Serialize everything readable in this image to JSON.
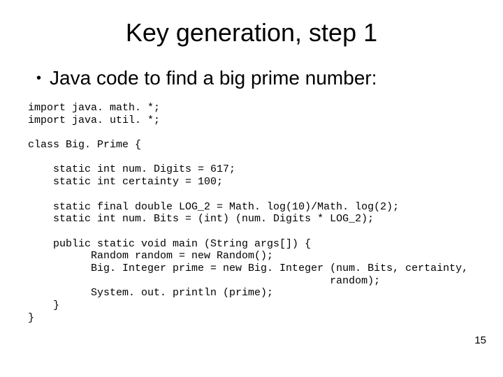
{
  "slide": {
    "title": "Key generation, step 1",
    "bullet": "Java code to find a big prime number:",
    "page_number": "15",
    "code_lines": [
      "import java. math. *;",
      "import java. util. *;",
      "",
      "class Big. Prime {",
      "",
      "    static int num. Digits = 617;",
      "    static int certainty = 100;",
      "",
      "    static final double LOG_2 = Math. log(10)/Math. log(2);",
      "    static int num. Bits = (int) (num. Digits * LOG_2);",
      "",
      "    public static void main (String args[]) {",
      "          Random random = new Random();",
      "          Big. Integer prime = new Big. Integer (num. Bits, certainty,",
      "                                                random);",
      "          System. out. println (prime);",
      "    }",
      "}"
    ]
  },
  "style": {
    "background_color": "#ffffff",
    "text_color": "#000000",
    "title_fontsize": 36,
    "bullet_fontsize": 28,
    "code_fontsize": 15,
    "code_font": "Courier New",
    "body_font": "Arial"
  }
}
